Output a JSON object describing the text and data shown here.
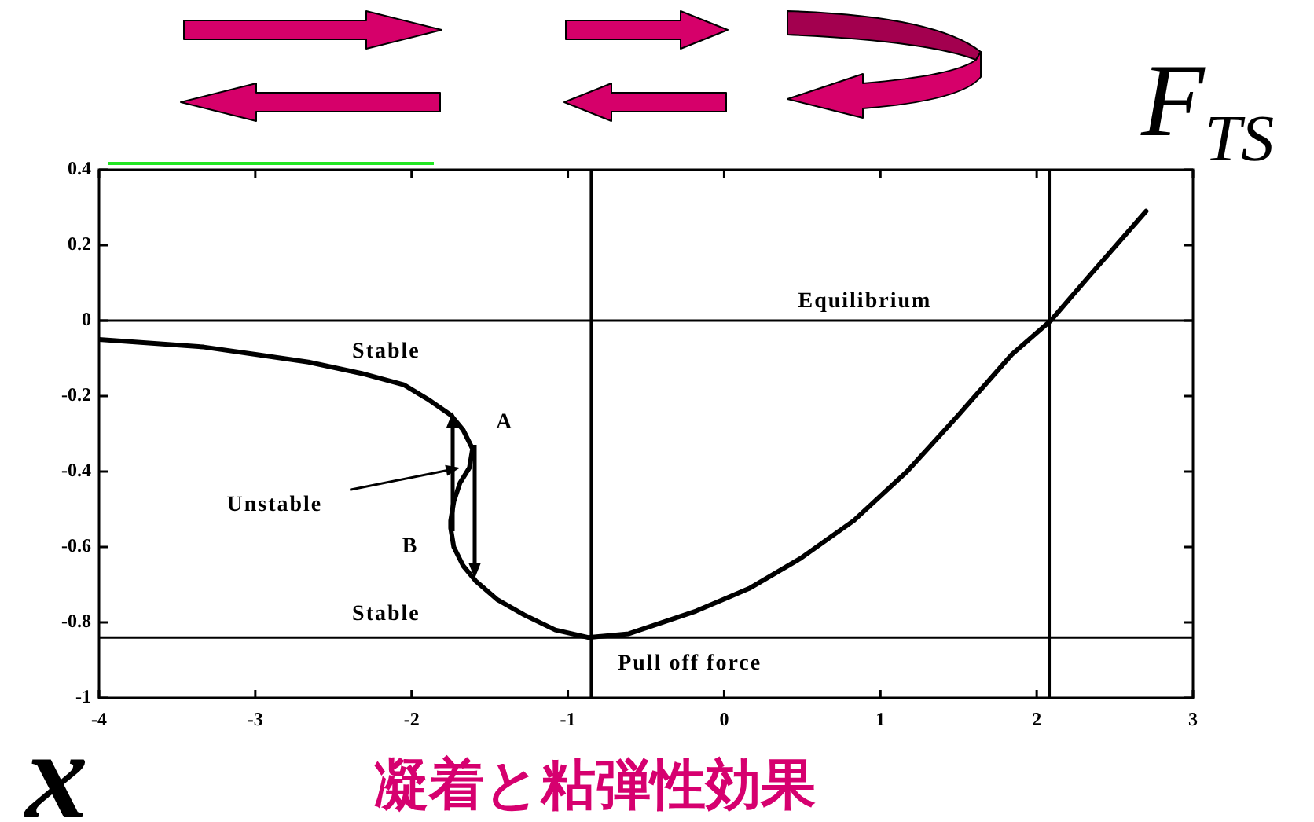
{
  "chart_data": {
    "type": "line",
    "title": "凝着と粘弾性効果",
    "xlabel": "x",
    "ylabel": "F$_{TS}$",
    "series": [
      {
        "color": "#000000",
        "x": [
          -4,
          -3.33,
          -2.99,
          -2.66,
          -2.32,
          -2.05,
          -1.89,
          -1.75,
          -1.67,
          -1.61,
          -1.63,
          -1.69,
          -1.73,
          -1.75,
          -1.75,
          -1.73,
          -1.67,
          -1.59,
          -1.45,
          -1.28,
          -1.08,
          -0.87,
          -0.61,
          -0.18,
          0.16,
          0.49,
          0.83,
          1.17,
          1.5,
          1.84,
          2.09,
          2.34,
          2.7
        ],
        "values": [
          -0.05,
          -0.07,
          -0.09,
          -0.11,
          -0.14,
          -0.17,
          -0.21,
          -0.25,
          -0.29,
          -0.34,
          -0.39,
          -0.43,
          -0.48,
          -0.53,
          -0.55,
          -0.6,
          -0.65,
          -0.69,
          -0.74,
          -0.78,
          -0.82,
          -0.84,
          -0.83,
          -0.77,
          -0.71,
          -0.63,
          -0.53,
          -0.4,
          -0.25,
          -0.09,
          0,
          0.12,
          0.29
        ]
      }
    ],
    "xlim": [
      -4,
      3
    ],
    "xticks": [
      -4,
      -3,
      -2,
      -1,
      0,
      1,
      2,
      3
    ],
    "ylim": [
      -1,
      0.4
    ],
    "yticks": [
      -1,
      -0.8,
      -0.6,
      -0.4,
      -0.2,
      0,
      0.2,
      0.4
    ],
    "ref_lines": [
      {
        "axis": "y",
        "value": 0,
        "label": "Equilibrium",
        "color": "#000000"
      },
      {
        "axis": "y",
        "value": -0.84,
        "label": "Pull off force",
        "color": "#000000"
      },
      {
        "axis": "x",
        "value": -0.85,
        "color": "#000000"
      },
      {
        "axis": "x",
        "value": 2.08,
        "color": "#000000"
      }
    ],
    "annotations": [
      "Stable",
      "A",
      {
        "text": "Unstable",
        "x": -1.69,
        "y": -0.39
      },
      "B",
      "Stable"
    ],
    "marker": "none",
    "line_style": "solid"
  }
}
